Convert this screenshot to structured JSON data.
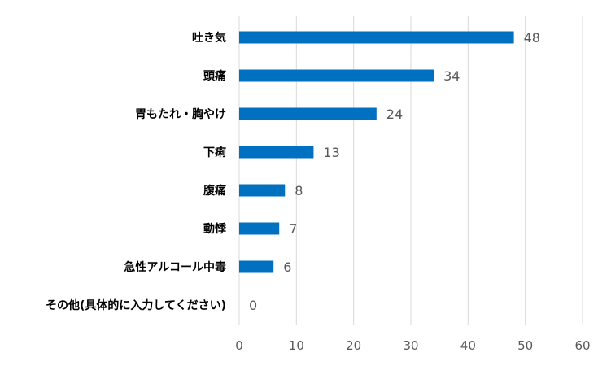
{
  "chart_data": {
    "type": "bar",
    "orientation": "horizontal",
    "title": "",
    "xlabel": "",
    "ylabel": "",
    "categories": [
      "吐き気",
      "頭痛",
      "胃もたれ・胸やけ",
      "下痢",
      "腹痛",
      "動悸",
      "急性アルコール中毒",
      "その他(具体的に入力してください)"
    ],
    "values": [
      48,
      34,
      24,
      13,
      8,
      7,
      6,
      0
    ],
    "xlim": [
      0,
      60
    ],
    "xticks": [
      0,
      10,
      20,
      30,
      40,
      50,
      60
    ],
    "grid": "vertical",
    "legend": "none",
    "bar_color": "#0070C0",
    "data_labels": true
  }
}
